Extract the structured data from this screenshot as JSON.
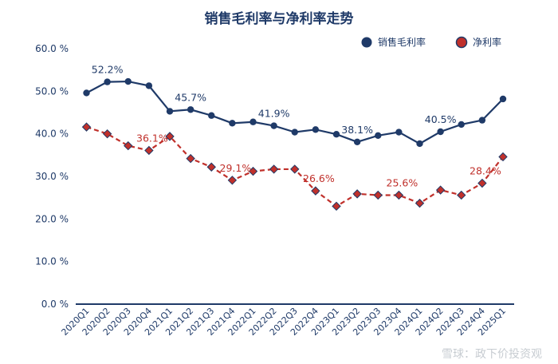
{
  "chart_data": {
    "type": "line",
    "title": "销售毛利率与净利率走势",
    "categories": [
      "2020Q1",
      "2020Q2",
      "2020Q3",
      "2020Q4",
      "2021Q1",
      "2021Q2",
      "2021Q3",
      "2021Q4",
      "2022Q1",
      "2022Q2",
      "2022Q3",
      "2022Q4",
      "2023Q1",
      "2023Q2",
      "2023Q3",
      "2023Q4",
      "2024Q1",
      "2024Q2",
      "2024Q3",
      "2024Q4",
      "2025Q1"
    ],
    "yticks": [
      "0.0 %",
      "10.0 %",
      "20.0 %",
      "30.0 %",
      "40.0 %",
      "50.0 %",
      "60.0 %"
    ],
    "ylim": [
      0,
      60
    ],
    "series": [
      {
        "name": "销售毛利率",
        "color": "#1f3a68",
        "marker": "circle",
        "line": "solid",
        "values": [
          49.6,
          52.2,
          52.3,
          51.3,
          45.3,
          45.7,
          44.3,
          42.5,
          42.8,
          41.9,
          40.4,
          41.0,
          39.9,
          38.1,
          39.6,
          40.4,
          37.7,
          40.5,
          42.2,
          43.2,
          48.2
        ],
        "labels": [
          {
            "index": 1,
            "text": "52.2%"
          },
          {
            "index": 5,
            "text": "45.7%"
          },
          {
            "index": 9,
            "text": "41.9%"
          },
          {
            "index": 13,
            "text": "38.1%"
          },
          {
            "index": 17,
            "text": "40.5%"
          }
        ]
      },
      {
        "name": "净利率",
        "color": "#c0302b",
        "marker": "diamond",
        "line": "dashed",
        "values": [
          41.6,
          40.0,
          37.2,
          36.1,
          39.4,
          34.2,
          32.2,
          29.1,
          31.2,
          31.7,
          31.7,
          26.6,
          23.0,
          25.9,
          25.6,
          25.6,
          23.7,
          26.8,
          25.6,
          28.4,
          34.6
        ],
        "labels": [
          {
            "index": 3,
            "text": "36.1%"
          },
          {
            "index": 7,
            "text": "29.1%"
          },
          {
            "index": 11,
            "text": "26.6%"
          },
          {
            "index": 15,
            "text": "25.6%"
          },
          {
            "index": 19,
            "text": "28.4%"
          }
        ]
      }
    ],
    "legend_position": "top-right",
    "grid": false
  },
  "watermark": "雪球：政下价投资观"
}
